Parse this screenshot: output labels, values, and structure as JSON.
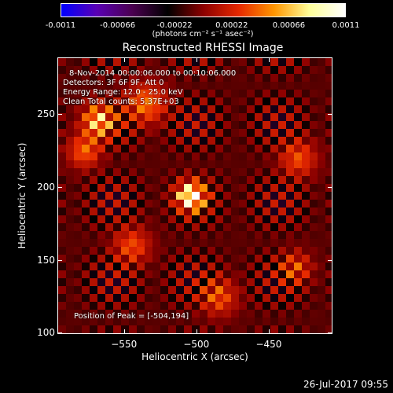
{
  "colorbar": {
    "ticks": [
      "-0.0011",
      "-0.00066",
      "-0.00022",
      "0.00022",
      "0.00066",
      "0.0011"
    ],
    "tick_values": [
      -0.0011,
      -0.00066,
      -0.00022,
      0.00022,
      0.00066,
      0.0011
    ],
    "units_label": "(photons cm⁻² s⁻¹ asec⁻²)",
    "colors": [
      "#0000ff",
      "#5a00b4",
      "#4b0050",
      "#000000",
      "#8c0000",
      "#e62800",
      "#ff9600",
      "#ffff9a",
      "#ffffff"
    ]
  },
  "info": {
    "line1": "8-Nov-2014 00:00:06.000 to 00:10:06.000",
    "line2": "Detectors: 3F 6F 9F, Att 0",
    "line3": "Energy Range: 12.0 - 25.0 keV",
    "line4": "Clean     Total counts: 5.37E+03",
    "peak": "Position of Peak = [-504,194]"
  },
  "footer": {
    "timestamp": "26-Jul-2017 09:55"
  },
  "chart_data": {
    "type": "heatmap",
    "title": "Reconstructed RHESSI Image",
    "xlabel": "Heliocentric X (arcsec)",
    "ylabel": "Heliocentric Y (arcsec)",
    "xlim": [
      -596,
      -406
    ],
    "ylim": [
      99,
      289
    ],
    "xticks": [
      -550,
      -500,
      -450
    ],
    "xtick_labels": [
      "−550",
      "−500",
      "−450"
    ],
    "yticks": [
      100,
      150,
      200,
      250
    ],
    "ytick_labels": [
      "100",
      "150",
      "200",
      "250"
    ],
    "clim": [
      -0.0011,
      0.0011
    ],
    "sources": [
      {
        "x": -504,
        "y": 194,
        "sigma": 7,
        "amplitude": 0.0011
      },
      {
        "x": -568,
        "y": 246,
        "sigma": 8,
        "amplitude": 0.00075
      },
      {
        "x": -535,
        "y": 258,
        "sigma": 10,
        "amplitude": 0.00055
      },
      {
        "x": -578,
        "y": 225,
        "sigma": 8,
        "amplitude": 0.0005
      },
      {
        "x": -545,
        "y": 160,
        "sigma": 9,
        "amplitude": 0.00045
      },
      {
        "x": -485,
        "y": 125,
        "sigma": 9,
        "amplitude": 0.00045
      },
      {
        "x": -430,
        "y": 220,
        "sigma": 9,
        "amplitude": 0.00045
      },
      {
        "x": -432,
        "y": 145,
        "sigma": 8,
        "amplitude": 0.0004
      }
    ],
    "background_amplitude": 0.0003,
    "ripple_period_arcsec": 12
  }
}
